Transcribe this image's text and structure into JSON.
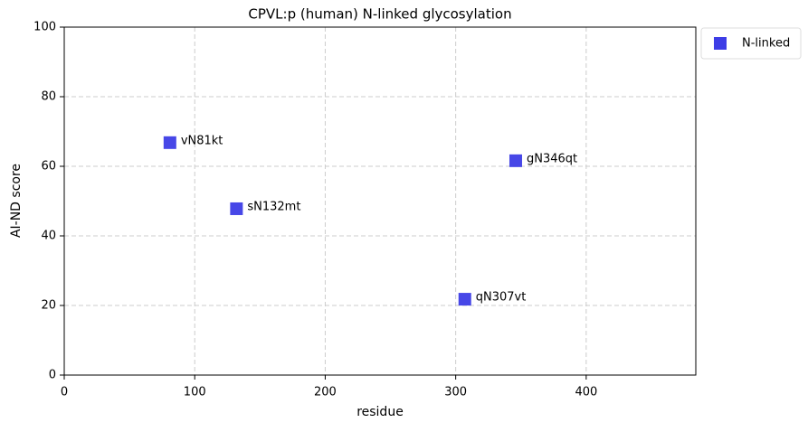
{
  "chart_data": {
    "type": "scatter",
    "title": "CPVL:p (human) N-linked glycosylation",
    "xlabel": "residue",
    "ylabel": "AI-ND score",
    "series": [
      {
        "name": "N-linked",
        "color": "#3d3de6",
        "x": [
          81,
          132,
          307,
          346
        ],
        "values": [
          66.8,
          47.8,
          21.8,
          61.6
        ],
        "point_labels": [
          "vN81kt",
          "sN132mt",
          "qN307vt",
          "gN346qt"
        ]
      }
    ],
    "xlim": [
      0,
      484
    ],
    "ylim": [
      0,
      100
    ],
    "xticks": [
      0,
      100,
      200,
      300,
      400
    ],
    "yticks": [
      0,
      20,
      40,
      60,
      80,
      100
    ],
    "grid": true,
    "legend": "outside-upper-right"
  }
}
